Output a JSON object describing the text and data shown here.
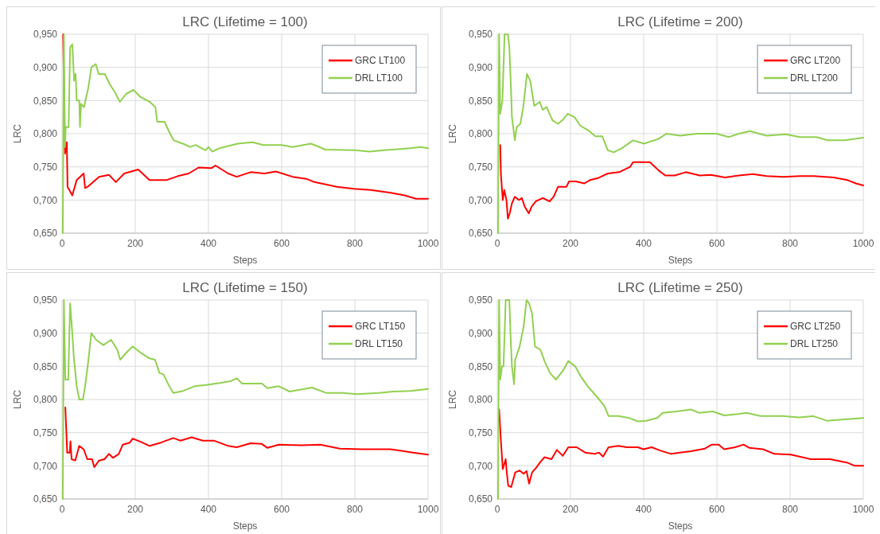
{
  "chart_data": [
    {
      "type": "line",
      "title": "LRC (Lifetime = 100)",
      "xlabel": "Steps",
      "ylabel": "LRC",
      "xlim": [
        0,
        1000
      ],
      "xticks": [
        0,
        200,
        400,
        600,
        800,
        1000
      ],
      "ylim": [
        0.65,
        0.95
      ],
      "yticks": [
        {
          "value": 0.65,
          "label": "0,650"
        },
        {
          "value": 0.7,
          "label": "0,700"
        },
        {
          "value": 0.75,
          "label": "0,750"
        },
        {
          "value": 0.8,
          "label": "0,800"
        },
        {
          "value": 0.85,
          "label": "0,850"
        },
        {
          "value": 0.9,
          "label": "0,900"
        },
        {
          "value": 0.95,
          "label": "0,950"
        }
      ],
      "grid": true,
      "legend": "top right",
      "series": [
        {
          "name": "GRC LT100",
          "color": "#ff0000",
          "x": [
            3,
            8,
            13,
            15,
            28,
            40,
            59,
            63,
            70,
            101,
            128,
            147,
            170,
            208,
            239,
            285,
            316,
            346,
            373,
            408,
            419,
            454,
            477,
            515,
            553,
            584,
            630,
            667,
            690,
            751,
            798,
            844,
            898,
            936,
            967,
            1000
          ],
          "values": [
            0.95,
            0.77,
            0.787,
            0.72,
            0.707,
            0.73,
            0.74,
            0.718,
            0.72,
            0.735,
            0.738,
            0.727,
            0.74,
            0.746,
            0.73,
            0.73,
            0.736,
            0.74,
            0.749,
            0.748,
            0.752,
            0.74,
            0.735,
            0.742,
            0.74,
            0.743,
            0.735,
            0.732,
            0.727,
            0.72,
            0.717,
            0.715,
            0.711,
            0.707,
            0.702,
            0.702
          ]
        },
        {
          "name": "DRL LT100",
          "color": "#92d050",
          "x": [
            2,
            5,
            8,
            10,
            18,
            22,
            28,
            33,
            37,
            40,
            47,
            49,
            52,
            60,
            72,
            80,
            92,
            100,
            117,
            130,
            145,
            158,
            175,
            195,
            215,
            240,
            255,
            260,
            280,
            295,
            305,
            330,
            350,
            365,
            392,
            400,
            410,
            430,
            480,
            520,
            550,
            600,
            630,
            680,
            720,
            800,
            840,
            880,
            950,
            980,
            1000
          ],
          "values": [
            0.65,
            0.95,
            0.78,
            0.81,
            0.81,
            0.93,
            0.935,
            0.88,
            0.89,
            0.85,
            0.85,
            0.81,
            0.845,
            0.84,
            0.87,
            0.9,
            0.905,
            0.89,
            0.89,
            0.875,
            0.862,
            0.848,
            0.86,
            0.866,
            0.855,
            0.848,
            0.84,
            0.818,
            0.818,
            0.8,
            0.79,
            0.785,
            0.78,
            0.783,
            0.775,
            0.78,
            0.773,
            0.778,
            0.785,
            0.787,
            0.783,
            0.783,
            0.78,
            0.785,
            0.776,
            0.775,
            0.773,
            0.775,
            0.778,
            0.78,
            0.778
          ]
        }
      ]
    },
    {
      "type": "line",
      "title": "LRC (Lifetime = 200)",
      "xlabel": "Steps",
      "ylabel": "LRC",
      "xlim": [
        0,
        1000
      ],
      "xticks": [
        0,
        200,
        400,
        600,
        800,
        1000
      ],
      "ylim": [
        0.65,
        0.95
      ],
      "yticks": [
        {
          "value": 0.65,
          "label": "0,650"
        },
        {
          "value": 0.7,
          "label": "0,700"
        },
        {
          "value": 0.75,
          "label": "0,750"
        },
        {
          "value": 0.8,
          "label": "0,800"
        },
        {
          "value": 0.85,
          "label": "0,850"
        },
        {
          "value": 0.9,
          "label": "0,900"
        },
        {
          "value": 0.95,
          "label": "0,950"
        }
      ],
      "grid": true,
      "legend": "top right",
      "series": [
        {
          "name": "GRC LT200",
          "color": "#ff0000",
          "x": [
            8,
            10,
            15,
            19,
            25,
            29,
            34,
            40,
            48,
            59,
            67,
            75,
            86,
            94,
            105,
            124,
            143,
            154,
            166,
            189,
            196,
            215,
            238,
            253,
            275,
            302,
            333,
            363,
            371,
            417,
            440,
            459,
            485,
            515,
            553,
            584,
            622,
            660,
            698,
            736,
            782,
            827,
            865,
            919,
            957,
            980,
            1000
          ],
          "values": [
            0.783,
            0.738,
            0.7,
            0.715,
            0.7,
            0.672,
            0.68,
            0.695,
            0.705,
            0.7,
            0.703,
            0.69,
            0.68,
            0.69,
            0.698,
            0.703,
            0.698,
            0.705,
            0.72,
            0.72,
            0.728,
            0.728,
            0.725,
            0.73,
            0.733,
            0.74,
            0.742,
            0.75,
            0.757,
            0.757,
            0.745,
            0.737,
            0.737,
            0.742,
            0.737,
            0.738,
            0.734,
            0.737,
            0.739,
            0.736,
            0.735,
            0.736,
            0.736,
            0.734,
            0.73,
            0.725,
            0.722
          ]
        },
        {
          "name": "DRL LT200",
          "color": "#92d050",
          "x": [
            2,
            5,
            8,
            14,
            20,
            29,
            33,
            37,
            40,
            48,
            53,
            63,
            71,
            81,
            90,
            101,
            116,
            124,
            135,
            151,
            166,
            181,
            192,
            211,
            227,
            249,
            268,
            287,
            302,
            318,
            340,
            371,
            401,
            440,
            462,
            500,
            545,
            599,
            633,
            660,
            690,
            736,
            788,
            827,
            872,
            903,
            949,
            1000
          ],
          "values": [
            0.65,
            0.95,
            0.83,
            0.85,
            0.95,
            0.95,
            0.93,
            0.875,
            0.825,
            0.79,
            0.81,
            0.815,
            0.84,
            0.89,
            0.88,
            0.842,
            0.848,
            0.836,
            0.84,
            0.82,
            0.815,
            0.822,
            0.83,
            0.825,
            0.812,
            0.805,
            0.796,
            0.796,
            0.775,
            0.772,
            0.778,
            0.79,
            0.785,
            0.792,
            0.8,
            0.797,
            0.8,
            0.8,
            0.795,
            0.8,
            0.804,
            0.797,
            0.799,
            0.795,
            0.795,
            0.79,
            0.79,
            0.794
          ]
        }
      ]
    },
    {
      "type": "line",
      "title": "LRC (Lifetime = 150)",
      "xlabel": "Steps",
      "ylabel": "LRC",
      "xlim": [
        0,
        1000
      ],
      "xticks": [
        0,
        200,
        400,
        600,
        800,
        1000
      ],
      "ylim": [
        0.65,
        0.95
      ],
      "yticks": [
        {
          "value": 0.65,
          "label": "0,650"
        },
        {
          "value": 0.7,
          "label": "0,700"
        },
        {
          "value": 0.75,
          "label": "0,750"
        },
        {
          "value": 0.8,
          "label": "0,800"
        },
        {
          "value": 0.85,
          "label": "0,850"
        },
        {
          "value": 0.9,
          "label": "0,900"
        },
        {
          "value": 0.95,
          "label": "0,950"
        }
      ],
      "grid": true,
      "legend": "top right",
      "series": [
        {
          "name": "GRC LT150",
          "color": "#ff0000",
          "x": [
            9,
            14,
            21,
            23,
            26,
            36,
            47,
            59,
            69,
            82,
            88,
            101,
            116,
            128,
            139,
            155,
            166,
            185,
            193,
            216,
            239,
            270,
            304,
            323,
            354,
            385,
            415,
            454,
            477,
            515,
            546,
            561,
            592,
            653,
            706,
            759,
            820,
            897,
            959,
            1000
          ],
          "values": [
            0.788,
            0.72,
            0.72,
            0.737,
            0.71,
            0.708,
            0.73,
            0.725,
            0.71,
            0.71,
            0.698,
            0.708,
            0.71,
            0.718,
            0.712,
            0.718,
            0.732,
            0.735,
            0.741,
            0.736,
            0.73,
            0.735,
            0.742,
            0.738,
            0.743,
            0.738,
            0.738,
            0.73,
            0.728,
            0.734,
            0.733,
            0.727,
            0.732,
            0.731,
            0.732,
            0.726,
            0.725,
            0.725,
            0.72,
            0.717
          ]
        },
        {
          "name": "DRL LT150",
          "color": "#92d050",
          "x": [
            2,
            5,
            9,
            17,
            22,
            28,
            32,
            40,
            47,
            57,
            63,
            70,
            80,
            93,
            113,
            134,
            151,
            159,
            178,
            193,
            216,
            239,
            254,
            266,
            277,
            293,
            304,
            331,
            362,
            393,
            431,
            462,
            477,
            492,
            546,
            561,
            592,
            622,
            653,
            683,
            721,
            767,
            805,
            866,
            904,
            952,
            1000
          ],
          "values": [
            0.65,
            0.95,
            0.83,
            0.83,
            0.945,
            0.9,
            0.865,
            0.82,
            0.8,
            0.8,
            0.82,
            0.85,
            0.9,
            0.89,
            0.882,
            0.89,
            0.875,
            0.86,
            0.872,
            0.88,
            0.87,
            0.862,
            0.86,
            0.84,
            0.838,
            0.82,
            0.81,
            0.813,
            0.82,
            0.822,
            0.825,
            0.828,
            0.832,
            0.824,
            0.824,
            0.817,
            0.82,
            0.812,
            0.815,
            0.818,
            0.81,
            0.81,
            0.808,
            0.81,
            0.812,
            0.813,
            0.816
          ]
        }
      ]
    },
    {
      "type": "line",
      "title": "LRC (Lifetime = 250)",
      "xlabel": "Steps",
      "ylabel": "LRC",
      "xlim": [
        0,
        1000
      ],
      "xticks": [
        0,
        200,
        400,
        600,
        800,
        1000
      ],
      "ylim": [
        0.65,
        0.95
      ],
      "yticks": [
        {
          "value": 0.65,
          "label": "0,650"
        },
        {
          "value": 0.7,
          "label": "0,700"
        },
        {
          "value": 0.75,
          "label": "0,750"
        },
        {
          "value": 0.8,
          "label": "0,800"
        },
        {
          "value": 0.85,
          "label": "0,850"
        },
        {
          "value": 0.9,
          "label": "0,900"
        },
        {
          "value": 0.95,
          "label": "0,950"
        }
      ],
      "grid": true,
      "legend": "top right",
      "series": [
        {
          "name": "GRC LT250",
          "color": "#ff0000",
          "x": [
            5,
            10,
            15,
            23,
            25,
            30,
            38,
            43,
            49,
            61,
            72,
            80,
            87,
            95,
            106,
            118,
            129,
            148,
            163,
            179,
            194,
            217,
            240,
            266,
            278,
            289,
            304,
            331,
            354,
            384,
            399,
            422,
            445,
            475,
            498,
            529,
            567,
            586,
            605,
            620,
            650,
            673,
            689,
            726,
            757,
            802,
            840,
            856,
            909,
            955,
            977,
            1000
          ],
          "values": [
            0.785,
            0.737,
            0.695,
            0.71,
            0.695,
            0.67,
            0.668,
            0.678,
            0.69,
            0.693,
            0.688,
            0.692,
            0.673,
            0.69,
            0.697,
            0.706,
            0.713,
            0.71,
            0.724,
            0.715,
            0.728,
            0.728,
            0.72,
            0.718,
            0.72,
            0.714,
            0.728,
            0.73,
            0.728,
            0.728,
            0.725,
            0.728,
            0.723,
            0.718,
            0.72,
            0.722,
            0.726,
            0.732,
            0.732,
            0.725,
            0.728,
            0.732,
            0.727,
            0.725,
            0.718,
            0.717,
            0.712,
            0.71,
            0.71,
            0.705,
            0.7,
            0.7
          ]
        },
        {
          "name": "DRL LT250",
          "color": "#92d050",
          "x": [
            2,
            5,
            8,
            13,
            17,
            23,
            33,
            36,
            40,
            46,
            49,
            61,
            72,
            80,
            87,
            95,
            103,
            118,
            129,
            144,
            160,
            179,
            194,
            213,
            228,
            247,
            274,
            293,
            304,
            331,
            361,
            384,
            407,
            437,
            452,
            490,
            529,
            551,
            589,
            620,
            658,
            681,
            719,
            779,
            825,
            863,
            901,
            947,
            1000
          ],
          "values": [
            0.65,
            0.95,
            0.83,
            0.85,
            0.85,
            0.95,
            0.95,
            0.9,
            0.85,
            0.823,
            0.86,
            0.88,
            0.91,
            0.95,
            0.945,
            0.93,
            0.88,
            0.875,
            0.858,
            0.84,
            0.83,
            0.843,
            0.858,
            0.85,
            0.835,
            0.82,
            0.803,
            0.79,
            0.775,
            0.775,
            0.772,
            0.767,
            0.768,
            0.772,
            0.78,
            0.782,
            0.785,
            0.78,
            0.782,
            0.776,
            0.778,
            0.78,
            0.775,
            0.775,
            0.773,
            0.775,
            0.768,
            0.77,
            0.772
          ]
        }
      ]
    }
  ]
}
